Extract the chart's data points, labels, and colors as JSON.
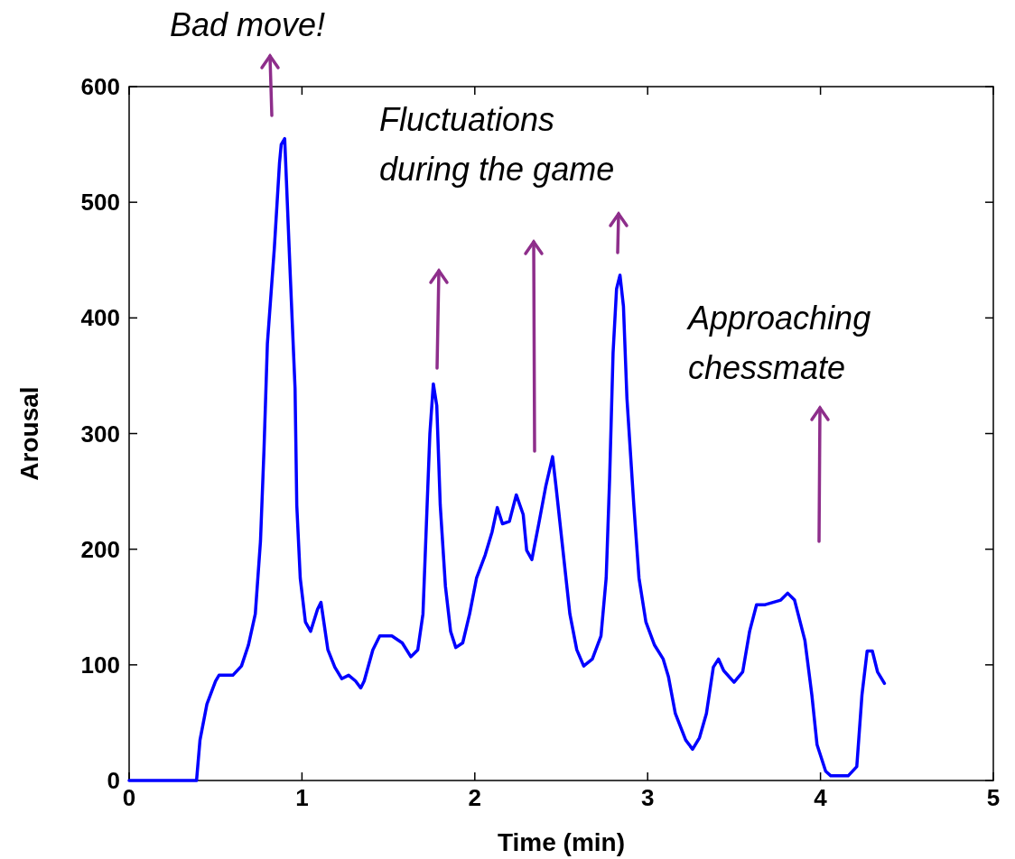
{
  "chart_data": {
    "type": "line",
    "xlabel": "Time (min)",
    "ylabel": "Arousal",
    "xlim": [
      0,
      5
    ],
    "ylim": [
      0,
      600
    ],
    "xticks": [
      0,
      1,
      2,
      3,
      4,
      5
    ],
    "yticks": [
      0,
      100,
      200,
      300,
      400,
      500,
      600
    ],
    "grid": false,
    "marker": "none",
    "line_style": "solid",
    "annotations": [
      "Bad move!",
      "Fluctuations\nduring the game",
      "Approaching\nchessmate"
    ],
    "series": [
      {
        "color": "#0000ff",
        "x": [
          0,
          0.39,
          0.41,
          0.45,
          0.5,
          0.52,
          0.6,
          0.65,
          0.69,
          0.73,
          0.76,
          0.78,
          0.8,
          0.84,
          0.87,
          0.88,
          0.9,
          0.91,
          0.93,
          0.96,
          0.97,
          0.99,
          1.02,
          1.05,
          1.09,
          1.11,
          1.15,
          1.19,
          1.23,
          1.27,
          1.31,
          1.34,
          1.36,
          1.41,
          1.45,
          1.52,
          1.58,
          1.63,
          1.67,
          1.7,
          1.72,
          1.74,
          1.76,
          1.78,
          1.8,
          1.83,
          1.86,
          1.89,
          1.93,
          1.97,
          2.01,
          2.06,
          2.1,
          2.13,
          2.16,
          2.2,
          2.24,
          2.28,
          2.3,
          2.33,
          2.37,
          2.41,
          2.45,
          2.47,
          2.51,
          2.55,
          2.59,
          2.63,
          2.68,
          2.73,
          2.76,
          2.78,
          2.8,
          2.82,
          2.84,
          2.86,
          2.88,
          2.92,
          2.95,
          2.99,
          3.04,
          3.09,
          3.12,
          3.16,
          3.22,
          3.26,
          3.3,
          3.34,
          3.38,
          3.41,
          3.44,
          3.5,
          3.55,
          3.59,
          3.63,
          3.68,
          3.77,
          3.81,
          3.85,
          3.91,
          3.95,
          3.98,
          4.03,
          4.06,
          4.16,
          4.21,
          4.24,
          4.27,
          4.3,
          4.33,
          4.37
        ],
        "values": [
          0,
          0,
          35,
          66,
          86,
          91,
          91,
          99,
          117,
          144,
          207,
          285,
          378,
          460,
          534,
          550,
          555,
          519,
          445,
          339,
          238,
          175,
          137,
          129,
          148,
          154,
          113,
          98,
          88,
          91,
          86,
          80,
          86,
          113,
          125,
          125,
          119,
          107,
          113,
          144,
          222,
          300,
          343,
          324,
          238,
          168,
          129,
          115,
          119,
          144,
          175,
          195,
          215,
          236,
          222,
          224,
          247,
          230,
          199,
          191,
          222,
          254,
          280,
          254,
          199,
          144,
          113,
          99,
          105,
          125,
          175,
          261,
          370,
          425,
          437,
          410,
          331,
          238,
          175,
          137,
          117,
          105,
          90,
          58,
          35,
          27,
          37,
          58,
          98,
          105,
          95,
          85,
          94,
          129,
          152,
          152,
          156,
          162,
          156,
          121,
          74,
          31,
          8,
          4,
          4,
          12,
          74,
          112,
          112,
          94,
          84
        ]
      }
    ]
  }
}
